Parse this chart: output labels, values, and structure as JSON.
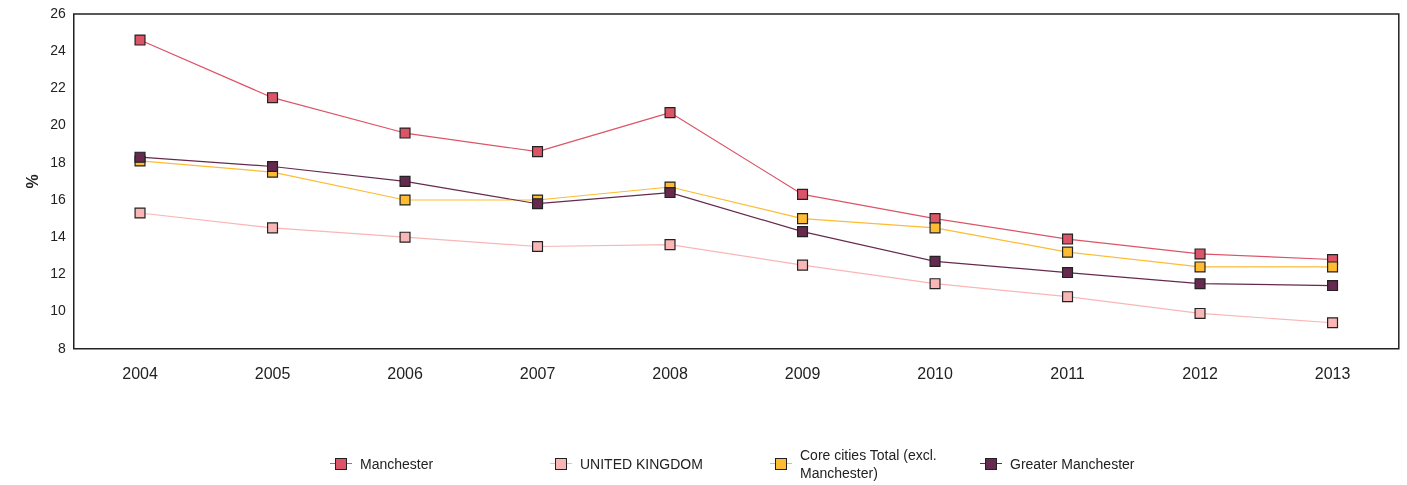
{
  "chart_data": {
    "type": "line",
    "ylabel": "%",
    "categories": [
      "2004",
      "2005",
      "2006",
      "2007",
      "2008",
      "2009",
      "2010",
      "2011",
      "2012",
      "2013"
    ],
    "ylim": [
      8,
      26
    ],
    "yticks": [
      8,
      10,
      12,
      14,
      16,
      18,
      20,
      22,
      24,
      26
    ],
    "grid": false,
    "legend": "bottom",
    "marker": "square",
    "line_style": "solid",
    "series": [
      {
        "name": "Manchester",
        "color": "#dc5468",
        "values": [
          24.6,
          21.5,
          19.6,
          18.6,
          20.7,
          16.3,
          15.0,
          13.9,
          13.1,
          12.8
        ]
      },
      {
        "name": "UNITED KINGDOM",
        "color": "#f9b6b6",
        "values": [
          15.3,
          14.5,
          14.0,
          13.5,
          13.6,
          12.5,
          11.5,
          10.8,
          9.9,
          9.4
        ]
      },
      {
        "name": "Core cities Total (excl. Manchester)",
        "color": "#fdbc32",
        "values": [
          18.1,
          17.5,
          16.0,
          16.0,
          16.7,
          15.0,
          14.5,
          13.2,
          12.4,
          12.4
        ]
      },
      {
        "name": "Greater Manchester",
        "color": "#652a4e",
        "values": [
          18.3,
          17.8,
          17.0,
          15.8,
          16.4,
          14.3,
          12.7,
          12.1,
          11.5,
          11.4
        ]
      }
    ]
  }
}
